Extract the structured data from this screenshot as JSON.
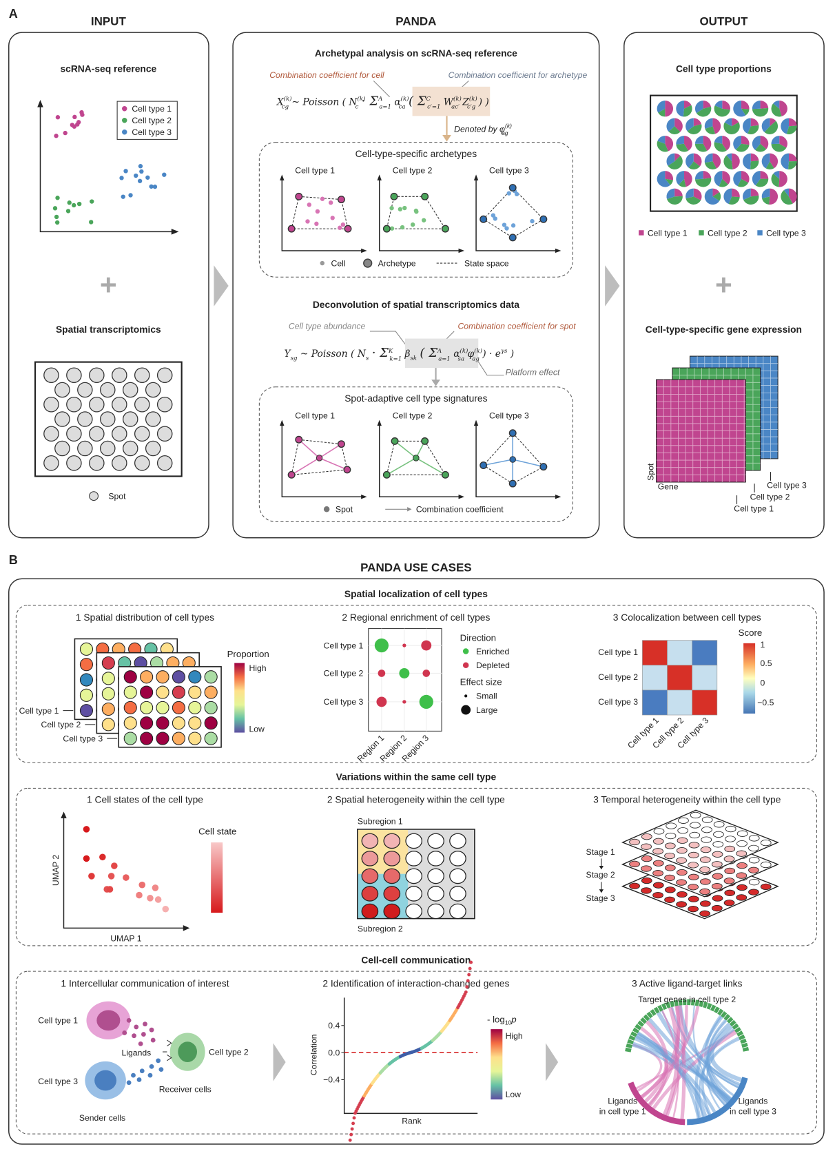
{
  "colors": {
    "cell_type_1": "#c0458f",
    "cell_type_2": "#4aa55a",
    "cell_type_3": "#4a86c5",
    "enriched": "#3fbf4a",
    "depleted": "#d0354f",
    "arrow_gray": "#bdbdbd"
  },
  "panel_a": {
    "label": "A",
    "input": {
      "header": "INPUT",
      "scrna_title": "scRNA-seq reference",
      "legend": [
        "Cell type 1",
        "Cell type 2",
        "Cell type 3"
      ],
      "plus": "+",
      "spatial_title": "Spatial transcriptomics",
      "spot_label": "Spot"
    },
    "panda": {
      "header": "PANDA",
      "archetypal_title": "Archetypal analysis on scRNA-seq reference",
      "coef_cell_label": "Combination coefficient for cell",
      "coef_archetype_label": "Combination coefficient for archetype",
      "equation1": [
        {
          "b": "X",
          "sup": "(k)",
          "sub": "cg"
        },
        {
          "b": " ~ Poisson ( "
        },
        {
          "b": "N",
          "sup": "(k)",
          "sub": "c"
        },
        {
          "b": " · Σ",
          "sup": "A",
          "sub": "a=1"
        },
        {
          "b": " α",
          "sup": "(k)",
          "sub": "ca"
        },
        {
          "b": " ( Σ",
          "sup": "C",
          "sub": "c′=1"
        },
        {
          "b": " W",
          "sup": "(k)",
          "sub": "ac′"
        },
        {
          "b": "Z",
          "sup": "(k)",
          "sub": "c′g"
        },
        {
          "b": " ) )"
        }
      ],
      "denoted_label": "Denoted by φ",
      "denoted_sup": "(k)",
      "denoted_sub": "ag",
      "archetypes_title": "Cell-type-specific archetypes",
      "plot_titles": [
        "Cell type 1",
        "Cell type 2",
        "Cell type 3"
      ],
      "archetypes_legend": {
        "cell": "Cell",
        "archetype": "Archetype",
        "state_space": "State space"
      },
      "deconv_title": "Deconvolution of spatial transcriptomics data",
      "abundance_label": "Cell type abundance",
      "coef_spot_label": "Combination coefficient for spot",
      "platform_label": "Platform effect",
      "equation2": [
        {
          "b": "Y",
          "sub": "sg"
        },
        {
          "b": " ~ Poisson ( "
        },
        {
          "b": "N",
          "sub": "s"
        },
        {
          "b": " · Σ",
          "sup": "K",
          "sub": "k=1"
        },
        {
          "b": " β",
          "sub": "sk"
        },
        {
          "b": " ( Σ",
          "sup": "A",
          "sub": "a=1"
        },
        {
          "b": " α",
          "sup": "(k)",
          "sub": "sa"
        },
        {
          "b": "φ",
          "sup": "(k)",
          "sub": "ag"
        },
        {
          "b": " ) · e",
          "sup": "γs"
        },
        {
          "b": " )"
        }
      ],
      "signatures_title": "Spot-adaptive cell type signatures",
      "signatures_legend": {
        "spot": "Spot",
        "coef": "Combination coefficient"
      }
    },
    "output": {
      "header": "OUTPUT",
      "proportions_title": "Cell type proportions",
      "legend": [
        "Cell type 1",
        "Cell type 2",
        "Cell type 3"
      ],
      "plus": "+",
      "expression_title": "Cell-type-specific gene expression",
      "axis_spot": "Spot",
      "axis_gene": "Gene",
      "layer_labels": [
        "Cell type 1",
        "Cell type 2",
        "Cell type 3"
      ]
    }
  },
  "panel_b": {
    "label": "B",
    "title": "PANDA USE CASES",
    "spatial_localization": {
      "title": "Spatial localization of cell types",
      "distribution": {
        "title": "1 Spatial distribution of cell types",
        "layer_labels": [
          "Cell type 1",
          "Cell type 2",
          "Cell type 3"
        ],
        "colorbar_title": "Proportion",
        "high": "High",
        "low": "Low"
      },
      "enrichment": {
        "title": "2 Regional enrichment of cell types",
        "rows": [
          "Cell type 1",
          "Cell type 2",
          "Cell type 3"
        ],
        "cols": [
          "Region 1",
          "Region 2",
          "Region 3"
        ],
        "cells": [
          [
            {
              "dir": "enriched",
              "size": "large"
            },
            {
              "dir": "depleted",
              "size": "small"
            },
            {
              "dir": "depleted",
              "size": "medium"
            }
          ],
          [
            {
              "dir": "depleted",
              "size": "small-medium"
            },
            {
              "dir": "enriched",
              "size": "medium"
            },
            {
              "dir": "depleted",
              "size": "small-medium"
            }
          ],
          [
            {
              "dir": "depleted",
              "size": "medium"
            },
            {
              "dir": "depleted",
              "size": "small"
            },
            {
              "dir": "enriched",
              "size": "large"
            }
          ]
        ],
        "legend_direction": "Direction",
        "enriched": "Enriched",
        "depleted": "Depleted",
        "legend_effect": "Effect size",
        "small": "Small",
        "large": "Large"
      },
      "colocalization": {
        "title": "3 Colocalization between cell types",
        "rows": [
          "Cell type 1",
          "Cell type 2",
          "Cell type 3"
        ],
        "cols": [
          "Cell type 1",
          "Cell type 2",
          "Cell type 3"
        ],
        "matrix": [
          [
            1,
            -0.3,
            -0.8
          ],
          [
            -0.3,
            1,
            -0.3
          ],
          [
            -0.8,
            -0.3,
            1
          ]
        ],
        "colorbar_title": "Score",
        "ticks": [
          "1",
          "0.5",
          "0",
          "−0.5"
        ]
      }
    },
    "variations": {
      "title": "Variations within the same cell type",
      "cell_states": {
        "title": "1 Cell states of the cell type",
        "xlabel": "UMAP 1",
        "ylabel": "UMAP 2",
        "colorbar_title": "Cell state"
      },
      "spatial_heterogeneity": {
        "title": "2 Spatial heterogeneity within the cell type",
        "subregion1": "Subregion 1",
        "subregion2": "Subregion 2"
      },
      "temporal_heterogeneity": {
        "title": "3 Temporal heterogeneity within the cell type",
        "stages": [
          "Stage 1",
          "Stage 2",
          "Stage 3"
        ]
      }
    },
    "communication": {
      "title": "Cell-cell communication",
      "intercellular": {
        "title": "1 Intercellular communication of interest",
        "cell1": "Cell type 1",
        "cell2": "Cell type 2",
        "cell3": "Cell type 3",
        "ligands": "Ligands",
        "receiver": "Receiver cells",
        "sender": "Sender cells"
      },
      "interaction_genes": {
        "title": "2 Identification of interaction-changed genes",
        "xlabel": "Rank",
        "ylabel": "Correlation",
        "yticks": [
          "0.4",
          "0.0",
          "−0.4"
        ],
        "colorbar_title": "- log",
        "colorbar_sub": "10",
        "colorbar_p": "p",
        "high": "High",
        "low": "Low"
      },
      "ligand_target": {
        "title": "3 Active ligand-target links",
        "target": "Target genes in cell type 2",
        "ligands1": [
          "Ligands",
          "in cell type 1"
        ],
        "ligands3": [
          "Ligands",
          "in cell type 3"
        ]
      }
    }
  }
}
